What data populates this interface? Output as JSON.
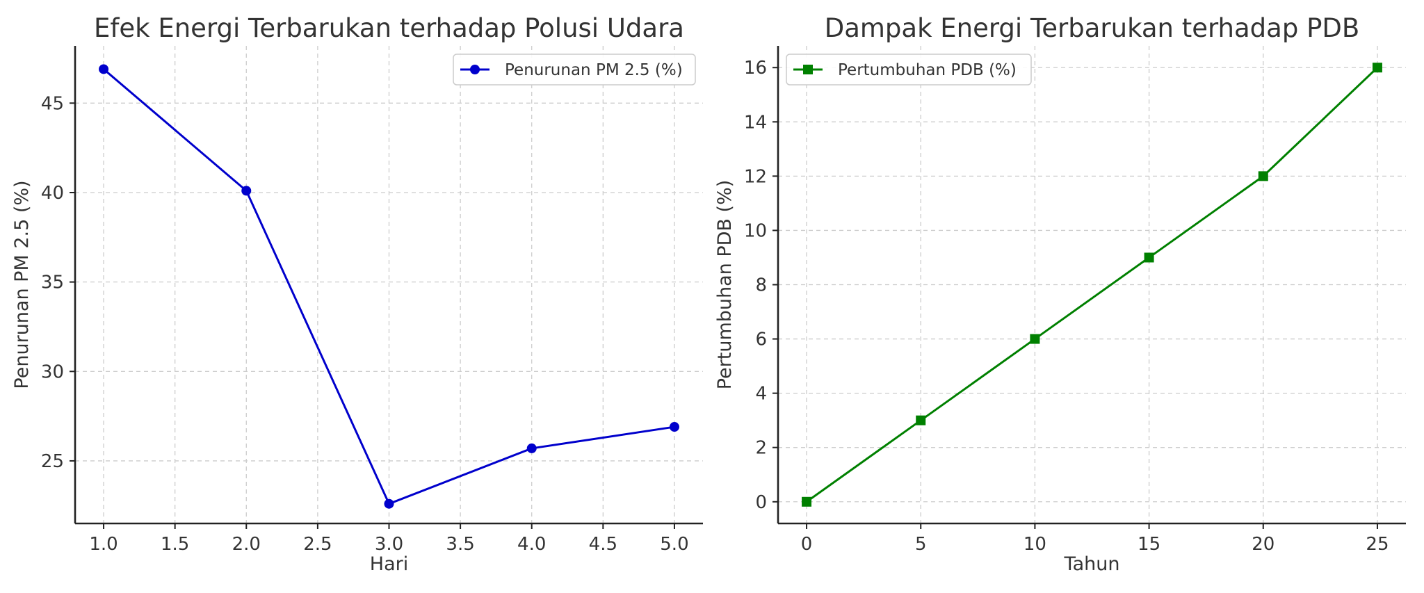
{
  "chart_data": [
    {
      "type": "line",
      "title": "Efek Energi Terbarukan terhadap Polusi Udara",
      "xlabel": "Hari",
      "ylabel": "Penurunan PM 2.5 (%)",
      "xlim": [
        0.8,
        5.2
      ],
      "ylim": [
        21.5,
        48.2
      ],
      "xticks": [
        1.0,
        1.5,
        2.0,
        2.5,
        3.0,
        3.5,
        4.0,
        4.5,
        5.0
      ],
      "xtick_labels": [
        "1.0",
        "1.5",
        "2.0",
        "2.5",
        "3.0",
        "3.5",
        "4.0",
        "4.5",
        "5.0"
      ],
      "yticks": [
        25,
        30,
        35,
        40,
        45
      ],
      "ytick_labels": [
        "25",
        "30",
        "35",
        "40",
        "45"
      ],
      "grid": true,
      "legend_position": "top-right",
      "series": [
        {
          "name": "Penurunan PM 2.5 (%)",
          "color": "#0000cc",
          "marker": "circle",
          "x": [
            1,
            2,
            3,
            4,
            5
          ],
          "y": [
            46.9,
            40.1,
            22.6,
            25.7,
            26.9
          ]
        }
      ]
    },
    {
      "type": "line",
      "title": "Dampak Energi Terbarukan terhadap PDB",
      "xlabel": "Tahun",
      "ylabel": "Pertumbuhan PDB (%)",
      "xlim": [
        -1.25,
        26.25
      ],
      "ylim": [
        -0.8,
        16.8
      ],
      "xticks": [
        0,
        5,
        10,
        15,
        20,
        25
      ],
      "xtick_labels": [
        "0",
        "5",
        "10",
        "15",
        "20",
        "25"
      ],
      "yticks": [
        0,
        2,
        4,
        6,
        8,
        10,
        12,
        14,
        16
      ],
      "ytick_labels": [
        "0",
        "2",
        "4",
        "6",
        "8",
        "10",
        "12",
        "14",
        "16"
      ],
      "grid": true,
      "legend_position": "top-left",
      "series": [
        {
          "name": "Pertumbuhan PDB (%)",
          "color": "#008000",
          "marker": "square",
          "x": [
            0,
            5,
            10,
            15,
            20,
            25
          ],
          "y": [
            0,
            3,
            6,
            9,
            12,
            16
          ]
        }
      ]
    }
  ]
}
